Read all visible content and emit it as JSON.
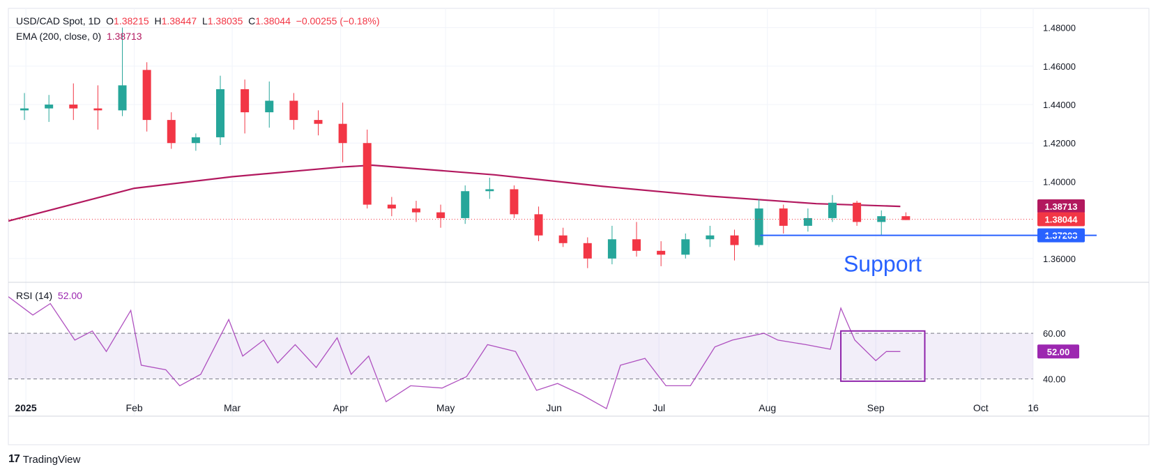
{
  "header": {
    "symbol": "USD/CAD Spot, 1D",
    "open_label": "O",
    "open": "1.38215",
    "high_label": "H",
    "high": "1.38447",
    "low_label": "L",
    "low": "1.38035",
    "close_label": "C",
    "close": "1.38044",
    "change": "−0.00255 (−0.18%)",
    "ema_label": "EMA (200, close, 0)",
    "ema_value": "1.38713",
    "rsi_label": "RSI (14)",
    "rsi_value": "52.00"
  },
  "brand": {
    "logo": "17",
    "name": "TradingView"
  },
  "colors": {
    "up": "#26a69a",
    "down": "#f23645",
    "ema": "#b2185e",
    "rsi": "#9c27b0",
    "support": "#2962ff",
    "last_price": "#f23645"
  },
  "chart_data": [
    {
      "type": "candlestick",
      "title": "USD/CAD Spot, 1D",
      "y_axis_labels": [
        "1.48000",
        "1.46000",
        "1.44000",
        "1.42000",
        "1.40000",
        "1.36000"
      ],
      "y_range": [
        1.348,
        1.49
      ],
      "x_axis_labels": [
        "2025",
        "Feb",
        "Mar",
        "Apr",
        "May",
        "Jun",
        "Jul",
        "Aug",
        "Sep",
        "Oct",
        "16"
      ],
      "x_range": [
        "2024-12-27",
        "2025-10-16"
      ],
      "ohlc_weekly_approx": [
        {
          "date": "2024-12-30",
          "o": 1.437,
          "h": 1.446,
          "l": 1.432,
          "c": 1.438
        },
        {
          "date": "2025-01-06",
          "o": 1.438,
          "h": 1.445,
          "l": 1.431,
          "c": 1.44
        },
        {
          "date": "2025-01-13",
          "o": 1.44,
          "h": 1.451,
          "l": 1.432,
          "c": 1.438
        },
        {
          "date": "2025-01-20",
          "o": 1.438,
          "h": 1.45,
          "l": 1.427,
          "c": 1.437
        },
        {
          "date": "2025-01-27",
          "o": 1.437,
          "h": 1.48,
          "l": 1.434,
          "c": 1.45
        },
        {
          "date": "2025-02-03",
          "o": 1.458,
          "h": 1.462,
          "l": 1.426,
          "c": 1.432
        },
        {
          "date": "2025-02-10",
          "o": 1.432,
          "h": 1.436,
          "l": 1.417,
          "c": 1.42
        },
        {
          "date": "2025-02-17",
          "o": 1.42,
          "h": 1.425,
          "l": 1.416,
          "c": 1.423
        },
        {
          "date": "2025-02-24",
          "o": 1.423,
          "h": 1.455,
          "l": 1.419,
          "c": 1.448
        },
        {
          "date": "2025-03-03",
          "o": 1.448,
          "h": 1.453,
          "l": 1.425,
          "c": 1.436
        },
        {
          "date": "2025-03-10",
          "o": 1.436,
          "h": 1.452,
          "l": 1.428,
          "c": 1.442
        },
        {
          "date": "2025-03-17",
          "o": 1.442,
          "h": 1.446,
          "l": 1.427,
          "c": 1.432
        },
        {
          "date": "2025-03-24",
          "o": 1.432,
          "h": 1.437,
          "l": 1.424,
          "c": 1.43
        },
        {
          "date": "2025-03-31",
          "o": 1.43,
          "h": 1.441,
          "l": 1.41,
          "c": 1.42
        },
        {
          "date": "2025-04-07",
          "o": 1.42,
          "h": 1.427,
          "l": 1.386,
          "c": 1.388
        },
        {
          "date": "2025-04-14",
          "o": 1.388,
          "h": 1.392,
          "l": 1.382,
          "c": 1.386
        },
        {
          "date": "2025-04-21",
          "o": 1.386,
          "h": 1.39,
          "l": 1.379,
          "c": 1.384
        },
        {
          "date": "2025-04-28",
          "o": 1.384,
          "h": 1.388,
          "l": 1.376,
          "c": 1.381
        },
        {
          "date": "2025-05-05",
          "o": 1.381,
          "h": 1.398,
          "l": 1.378,
          "c": 1.395
        },
        {
          "date": "2025-05-12",
          "o": 1.395,
          "h": 1.402,
          "l": 1.391,
          "c": 1.396
        },
        {
          "date": "2025-05-19",
          "o": 1.396,
          "h": 1.398,
          "l": 1.381,
          "c": 1.383
        },
        {
          "date": "2025-05-26",
          "o": 1.383,
          "h": 1.387,
          "l": 1.369,
          "c": 1.372
        },
        {
          "date": "2025-06-02",
          "o": 1.372,
          "h": 1.376,
          "l": 1.366,
          "c": 1.368
        },
        {
          "date": "2025-06-09",
          "o": 1.368,
          "h": 1.371,
          "l": 1.355,
          "c": 1.36
        },
        {
          "date": "2025-06-16",
          "o": 1.36,
          "h": 1.377,
          "l": 1.357,
          "c": 1.37
        },
        {
          "date": "2025-06-23",
          "o": 1.37,
          "h": 1.379,
          "l": 1.361,
          "c": 1.364
        },
        {
          "date": "2025-06-30",
          "o": 1.364,
          "h": 1.369,
          "l": 1.356,
          "c": 1.362
        },
        {
          "date": "2025-07-07",
          "o": 1.362,
          "h": 1.373,
          "l": 1.36,
          "c": 1.37
        },
        {
          "date": "2025-07-14",
          "o": 1.37,
          "h": 1.377,
          "l": 1.366,
          "c": 1.372
        },
        {
          "date": "2025-07-21",
          "o": 1.372,
          "h": 1.375,
          "l": 1.359,
          "c": 1.367
        },
        {
          "date": "2025-07-28",
          "o": 1.367,
          "h": 1.391,
          "l": 1.366,
          "c": 1.386
        },
        {
          "date": "2025-08-04",
          "o": 1.386,
          "h": 1.388,
          "l": 1.373,
          "c": 1.377
        },
        {
          "date": "2025-08-11",
          "o": 1.377,
          "h": 1.386,
          "l": 1.374,
          "c": 1.381
        },
        {
          "date": "2025-08-18",
          "o": 1.381,
          "h": 1.393,
          "l": 1.379,
          "c": 1.389
        },
        {
          "date": "2025-08-25",
          "o": 1.389,
          "h": 1.39,
          "l": 1.377,
          "c": 1.379
        },
        {
          "date": "2025-09-01",
          "o": 1.379,
          "h": 1.385,
          "l": 1.372,
          "c": 1.382
        },
        {
          "date": "2025-09-08",
          "o": 1.382,
          "h": 1.384,
          "l": 1.38,
          "c": 1.38
        }
      ],
      "series": [
        {
          "name": "EMA (200, close, 0)",
          "x": [
            "2024-12-27",
            "2025-02-01",
            "2025-03-01",
            "2025-04-01",
            "2025-04-10",
            "2025-05-15",
            "2025-06-15",
            "2025-07-15",
            "2025-08-15",
            "2025-09-08"
          ],
          "values": [
            1.3795,
            1.3965,
            1.4025,
            1.4075,
            1.4085,
            1.4035,
            1.3975,
            1.3925,
            1.3885,
            1.3871
          ]
        }
      ],
      "price_labels": [
        {
          "label": "1.38713",
          "value": 1.38713,
          "color": "#b2185e"
        },
        {
          "label": "1.38044",
          "value": 1.38044,
          "color": "#f23645"
        },
        {
          "label": "1.37203",
          "value": 1.37203,
          "color": "#2962ff"
        }
      ],
      "support_line": {
        "value": 1.37203,
        "from": "2025-07-30",
        "label": "Support"
      }
    },
    {
      "type": "line",
      "title": "RSI (14)",
      "y_axis_labels": [
        "60.00",
        "40.00"
      ],
      "y_range": [
        24,
        82
      ],
      "band": [
        40,
        60
      ],
      "last_label": "52.00",
      "series": [
        {
          "name": "RSI (14)",
          "x": [
            "2024-12-27",
            "2025-01-03",
            "2025-01-08",
            "2025-01-15",
            "2025-01-20",
            "2025-01-24",
            "2025-01-31",
            "2025-02-03",
            "2025-02-10",
            "2025-02-14",
            "2025-02-20",
            "2025-02-28",
            "2025-03-04",
            "2025-03-10",
            "2025-03-14",
            "2025-03-19",
            "2025-03-25",
            "2025-03-31",
            "2025-04-04",
            "2025-04-09",
            "2025-04-14",
            "2025-04-21",
            "2025-04-30",
            "2025-05-07",
            "2025-05-13",
            "2025-05-21",
            "2025-05-27",
            "2025-06-02",
            "2025-06-09",
            "2025-06-16",
            "2025-06-20",
            "2025-06-27",
            "2025-07-03",
            "2025-07-10",
            "2025-07-17",
            "2025-07-22",
            "2025-07-31",
            "2025-08-04",
            "2025-08-12",
            "2025-08-19",
            "2025-08-22",
            "2025-08-26",
            "2025-09-01",
            "2025-09-04",
            "2025-09-08"
          ],
          "values": [
            76,
            68,
            73,
            57,
            61,
            52,
            70,
            46,
            44,
            37,
            42,
            66,
            50,
            57,
            47,
            55,
            45,
            58,
            42,
            50,
            30,
            37,
            36,
            41,
            55,
            52,
            35,
            38,
            33,
            27,
            46,
            49,
            37,
            37,
            54,
            57,
            60,
            57,
            55,
            53,
            71,
            57,
            48,
            52,
            52
          ]
        }
      ],
      "highlight_box": {
        "x": [
          "2025-08-22",
          "2025-09-15"
        ],
        "y": [
          39,
          61
        ]
      }
    }
  ]
}
